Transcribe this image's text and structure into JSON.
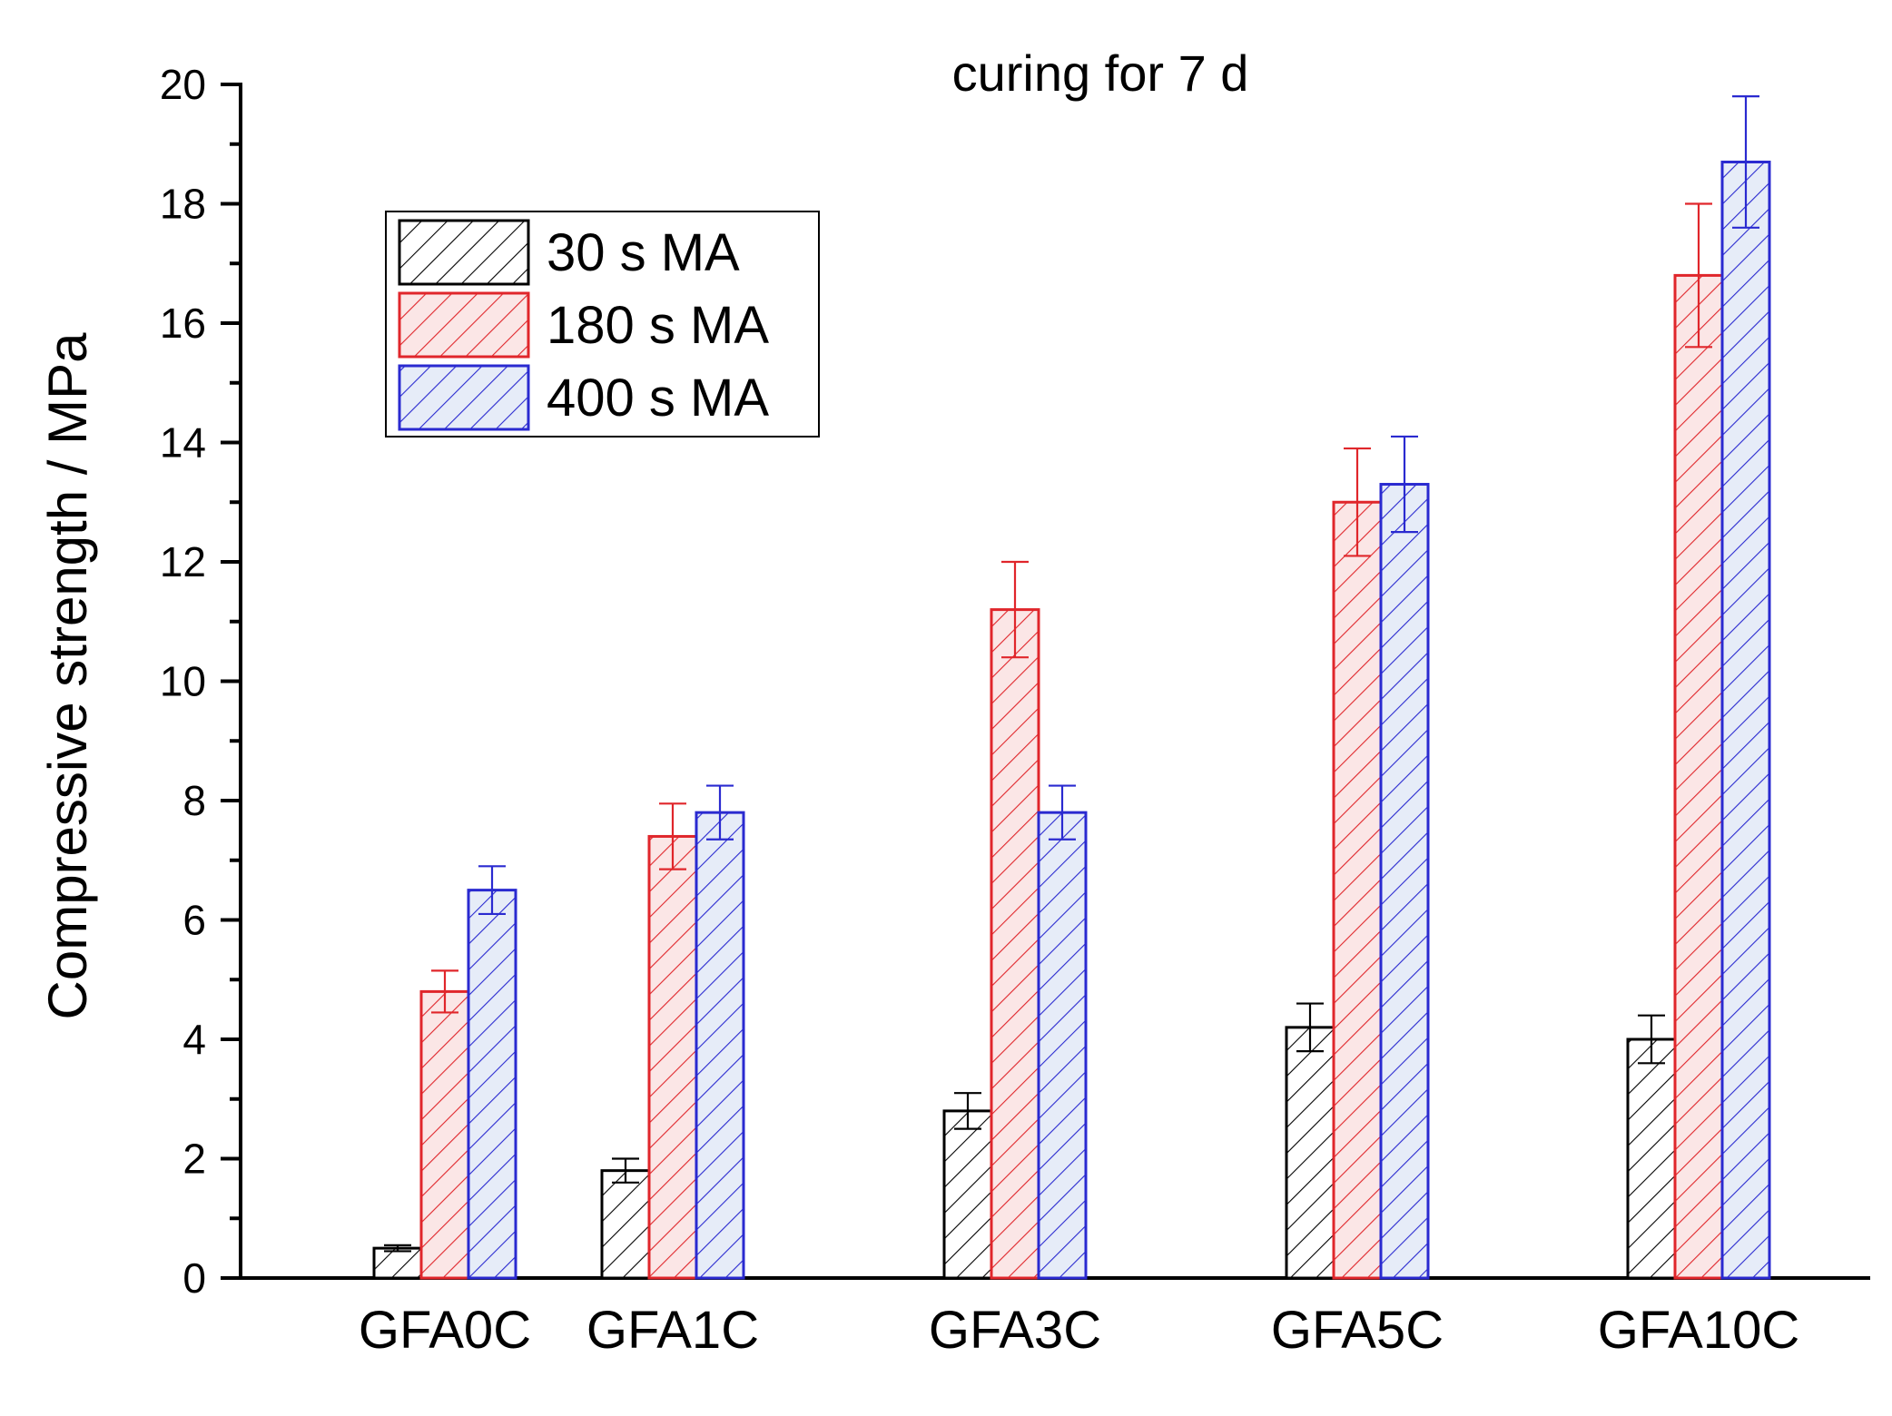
{
  "chart_data": {
    "type": "bar",
    "title": "curing for 7 d",
    "xlabel": "",
    "ylabel": "Compressive strength / MPa",
    "ylim": [
      0,
      20
    ],
    "yticks": [
      0,
      2,
      4,
      6,
      8,
      10,
      12,
      14,
      16,
      18,
      20
    ],
    "grid": false,
    "legend_position": "top-left",
    "categories": [
      "GFA0C",
      "GFA1C",
      "GFA3C",
      "GFA5C",
      "GFA10C"
    ],
    "series": [
      {
        "name": "30 s MA",
        "color": "#000000",
        "fill": "#ffffff",
        "values": [
          0.5,
          1.8,
          2.8,
          4.2,
          4.0
        ],
        "errors": [
          0.05,
          0.2,
          0.3,
          0.4,
          0.4
        ]
      },
      {
        "name": "180 s MA",
        "color": "#e0262b",
        "fill": "#fbe6e6",
        "values": [
          4.8,
          7.4,
          11.2,
          13.0,
          16.8
        ],
        "errors": [
          0.35,
          0.55,
          0.8,
          0.9,
          1.2
        ]
      },
      {
        "name": "400 s MA",
        "color": "#2a2ad0",
        "fill": "#e6ecf8",
        "values": [
          6.5,
          7.8,
          7.8,
          13.3,
          18.7
        ],
        "errors": [
          0.4,
          0.45,
          0.45,
          0.8,
          1.1
        ]
      }
    ]
  }
}
